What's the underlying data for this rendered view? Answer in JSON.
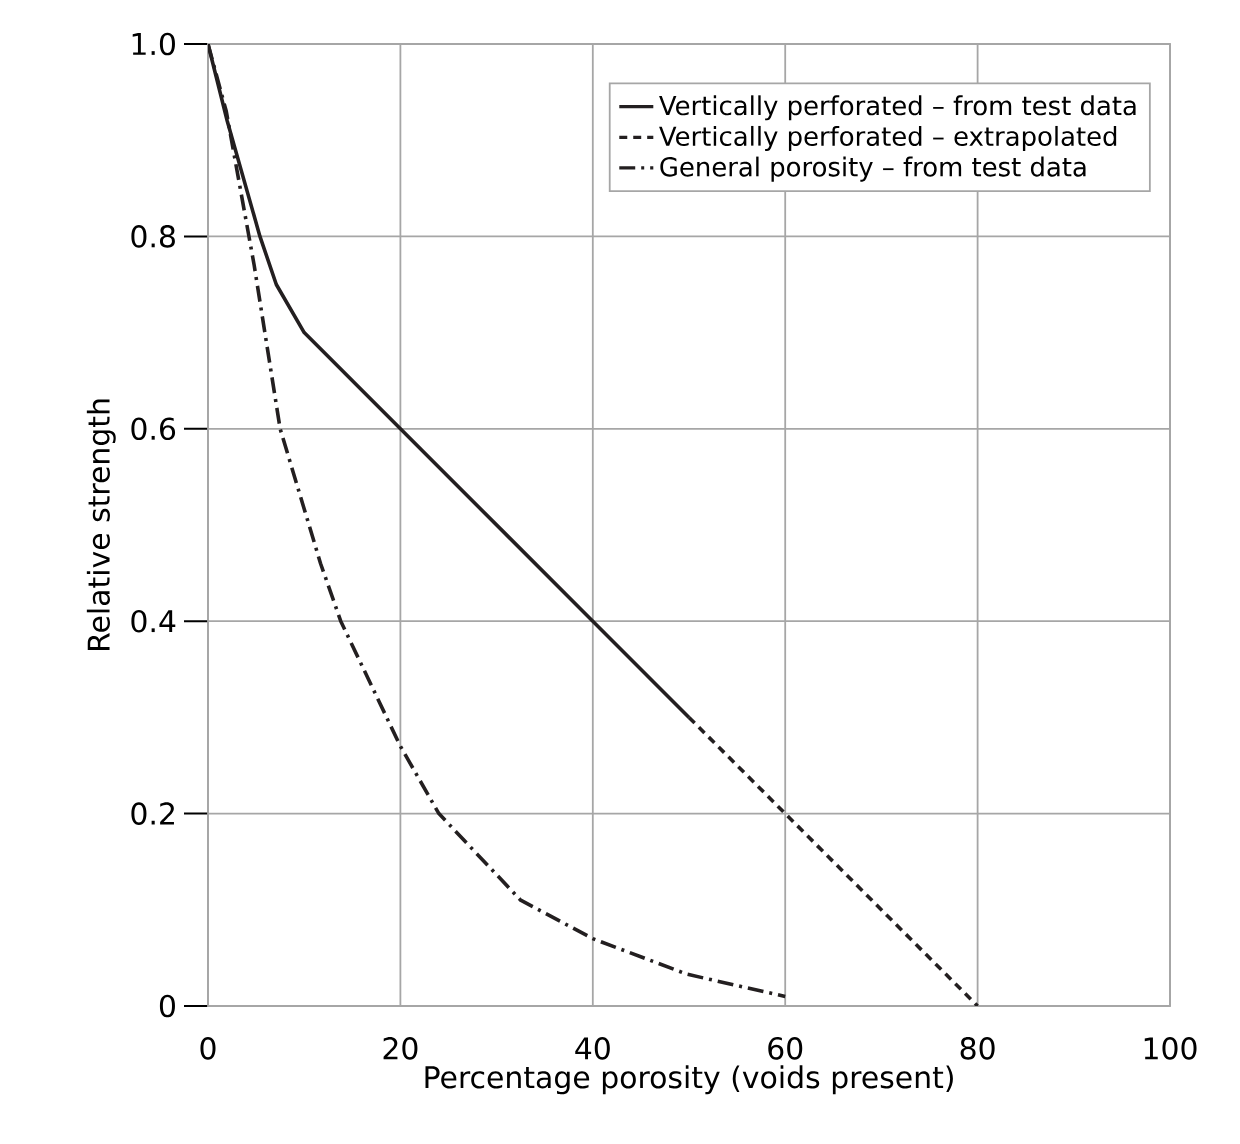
{
  "chart_data": {
    "type": "line",
    "xlabel": "Percentage porosity (voids present)",
    "ylabel": "Relative strength",
    "xlim": [
      0,
      100
    ],
    "ylim": [
      0,
      1
    ],
    "xticks": [
      0,
      20,
      40,
      60,
      80,
      100
    ],
    "yticks": [
      {
        "value": 0,
        "label": "0"
      },
      {
        "value": 0.2,
        "label": "0.2"
      },
      {
        "value": 0.4,
        "label": "0.4"
      },
      {
        "value": 0.6,
        "label": "0.6"
      },
      {
        "value": 0.8,
        "label": "0.8"
      },
      {
        "value": 1,
        "label": "1.0"
      }
    ],
    "grid": true,
    "legend": "top right",
    "marker": "none",
    "series": [
      {
        "name": "Vertically perforated – from test data",
        "color": "#231f20",
        "line_style": "solid",
        "x": [
          0,
          2,
          5.4,
          7.1,
          10,
          20,
          40,
          50
        ],
        "values": [
          1,
          0.92,
          0.8,
          0.75,
          0.7,
          0.6,
          0.4,
          0.3
        ]
      },
      {
        "name": "Vertically perforated – extrapolated",
        "color": "#231f20",
        "line_style": "dashed",
        "x": [
          50,
          60,
          80
        ],
        "values": [
          0.3,
          0.2,
          0
        ]
      },
      {
        "name": "General porosity – from test data",
        "color": "#231f20",
        "line_style": "dashdot",
        "x": [
          0,
          1.9,
          4.8,
          7.5,
          11.7,
          13.8,
          20,
          24,
          32.5,
          40,
          49.8,
          60
        ],
        "values": [
          1,
          0.93,
          0.77,
          0.6,
          0.46,
          0.4,
          0.27,
          0.2,
          0.11,
          0.07,
          0.033,
          0.01
        ]
      }
    ]
  }
}
